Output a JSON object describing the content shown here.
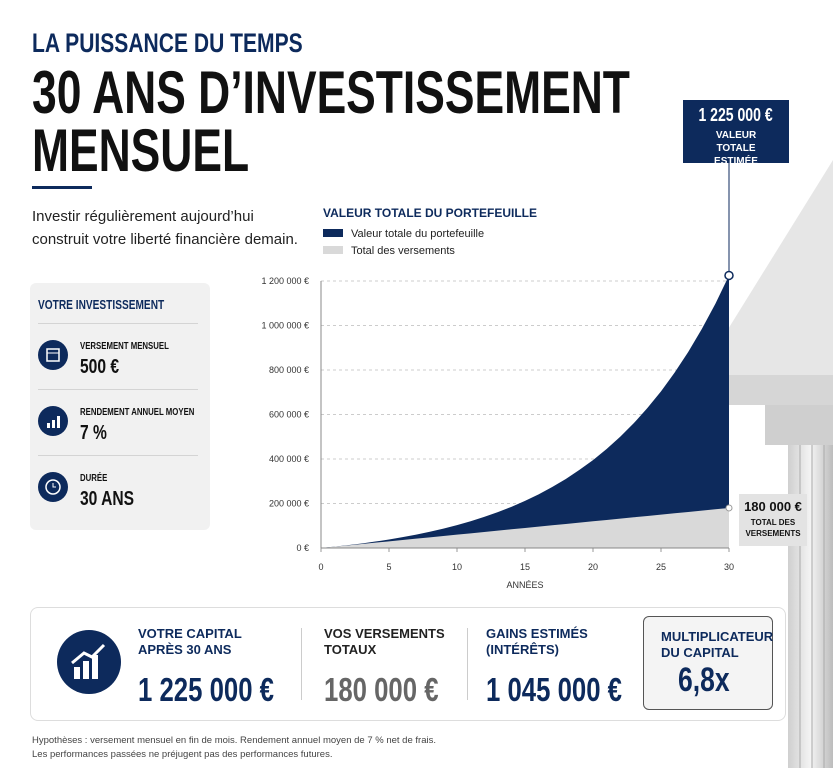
{
  "header": {
    "kicker": "LA PUISSANCE DU TEMPS",
    "title_lines": [
      "30 ANS D’INVESTISSEMENT",
      "MENSUEL"
    ]
  },
  "intro_lines": [
    "Investir régulièrement aujourd’hui",
    "construit votre liberté financière demain."
  ],
  "panel": {
    "title": "VOTRE INVESTISSEMENT",
    "items": [
      {
        "label": "VERSEMENT MENSUEL",
        "value": "500 €"
      },
      {
        "label": "RENDEMENT ANNUEL MOYEN",
        "value": "7 %"
      },
      {
        "label": "DURÉE",
        "value": "30 ANS"
      }
    ]
  },
  "chart_data": {
    "type": "area",
    "title": "VALEUR TOTALE DU PORTEFEUILLE",
    "x_label": "ANNÉES",
    "x": [
      0,
      1,
      2,
      3,
      4,
      5,
      6,
      7,
      8,
      9,
      10,
      11,
      12,
      13,
      14,
      15,
      16,
      17,
      18,
      19,
      20,
      21,
      22,
      23,
      24,
      25,
      26,
      27,
      28,
      29,
      30
    ],
    "series": [
      {
        "name": "Valeur totale du portefeuille",
        "color": "#0d2a5c",
        "values": [
          0,
          6000,
          13000,
          20000,
          29000,
          38000,
          49000,
          60000,
          73000,
          87000,
          103000,
          120000,
          140000,
          161000,
          185000,
          212000,
          241000,
          274000,
          310000,
          351000,
          395000,
          445000,
          500000,
          561000,
          629000,
          704000,
          788000,
          881000,
          984000,
          1098000,
          1225000
        ]
      },
      {
        "name": "Total des versements",
        "color": "#d9d9d9",
        "values": [
          0,
          6000,
          12000,
          18000,
          24000,
          30000,
          36000,
          42000,
          48000,
          54000,
          60000,
          66000,
          72000,
          78000,
          84000,
          90000,
          96000,
          102000,
          108000,
          114000,
          120000,
          126000,
          132000,
          138000,
          144000,
          150000,
          156000,
          162000,
          168000,
          174000,
          180000
        ]
      }
    ],
    "xlim": [
      0,
      30
    ],
    "xticks": [
      0,
      5,
      10,
      15,
      20,
      25,
      30
    ],
    "ylim": [
      0,
      1200000
    ],
    "yticks": [
      {
        "value": 0,
        "label": "0 €"
      },
      {
        "value": 200000,
        "label": "200 000 €"
      },
      {
        "value": 400000,
        "label": "400 000 €"
      },
      {
        "value": 600000,
        "label": "600 000 €"
      },
      {
        "value": 800000,
        "label": "800 000 €"
      },
      {
        "value": 1000000,
        "label": "1 000 000 €"
      },
      {
        "value": 1200000,
        "label": "1 200 000 €"
      }
    ],
    "grid": true,
    "annotations": [
      {
        "value": "1 225 000 €",
        "text": "VALEUR TOTALE ESTIMÉE"
      },
      {
        "value": "180 000 €",
        "text": "TOTAL DES VERSEMENTS"
      }
    ]
  },
  "summary": [
    {
      "label_lines": [
        "VOTRE CAPITAL",
        "APRÈS 30 ANS"
      ],
      "value": "1 225 000 €"
    },
    {
      "label_lines": [
        "VOS VERSEMENTS",
        "TOTAUX"
      ],
      "value": "180 000 €"
    },
    {
      "label_lines": [
        "GAINS ESTIMÉS",
        "(INTÉRÊTS)"
      ],
      "value": "1 045 000 €"
    },
    {
      "label_lines": [
        "MULTIPLICATEUR",
        "DU CAPITAL"
      ],
      "value": "6,8x"
    }
  ],
  "footnote_lines": [
    "Hypothèses : versement mensuel en fin de mois. Rendement annuel moyen de 7 % net de frais.",
    "Les performances passées ne préjugent pas des performances futures."
  ]
}
